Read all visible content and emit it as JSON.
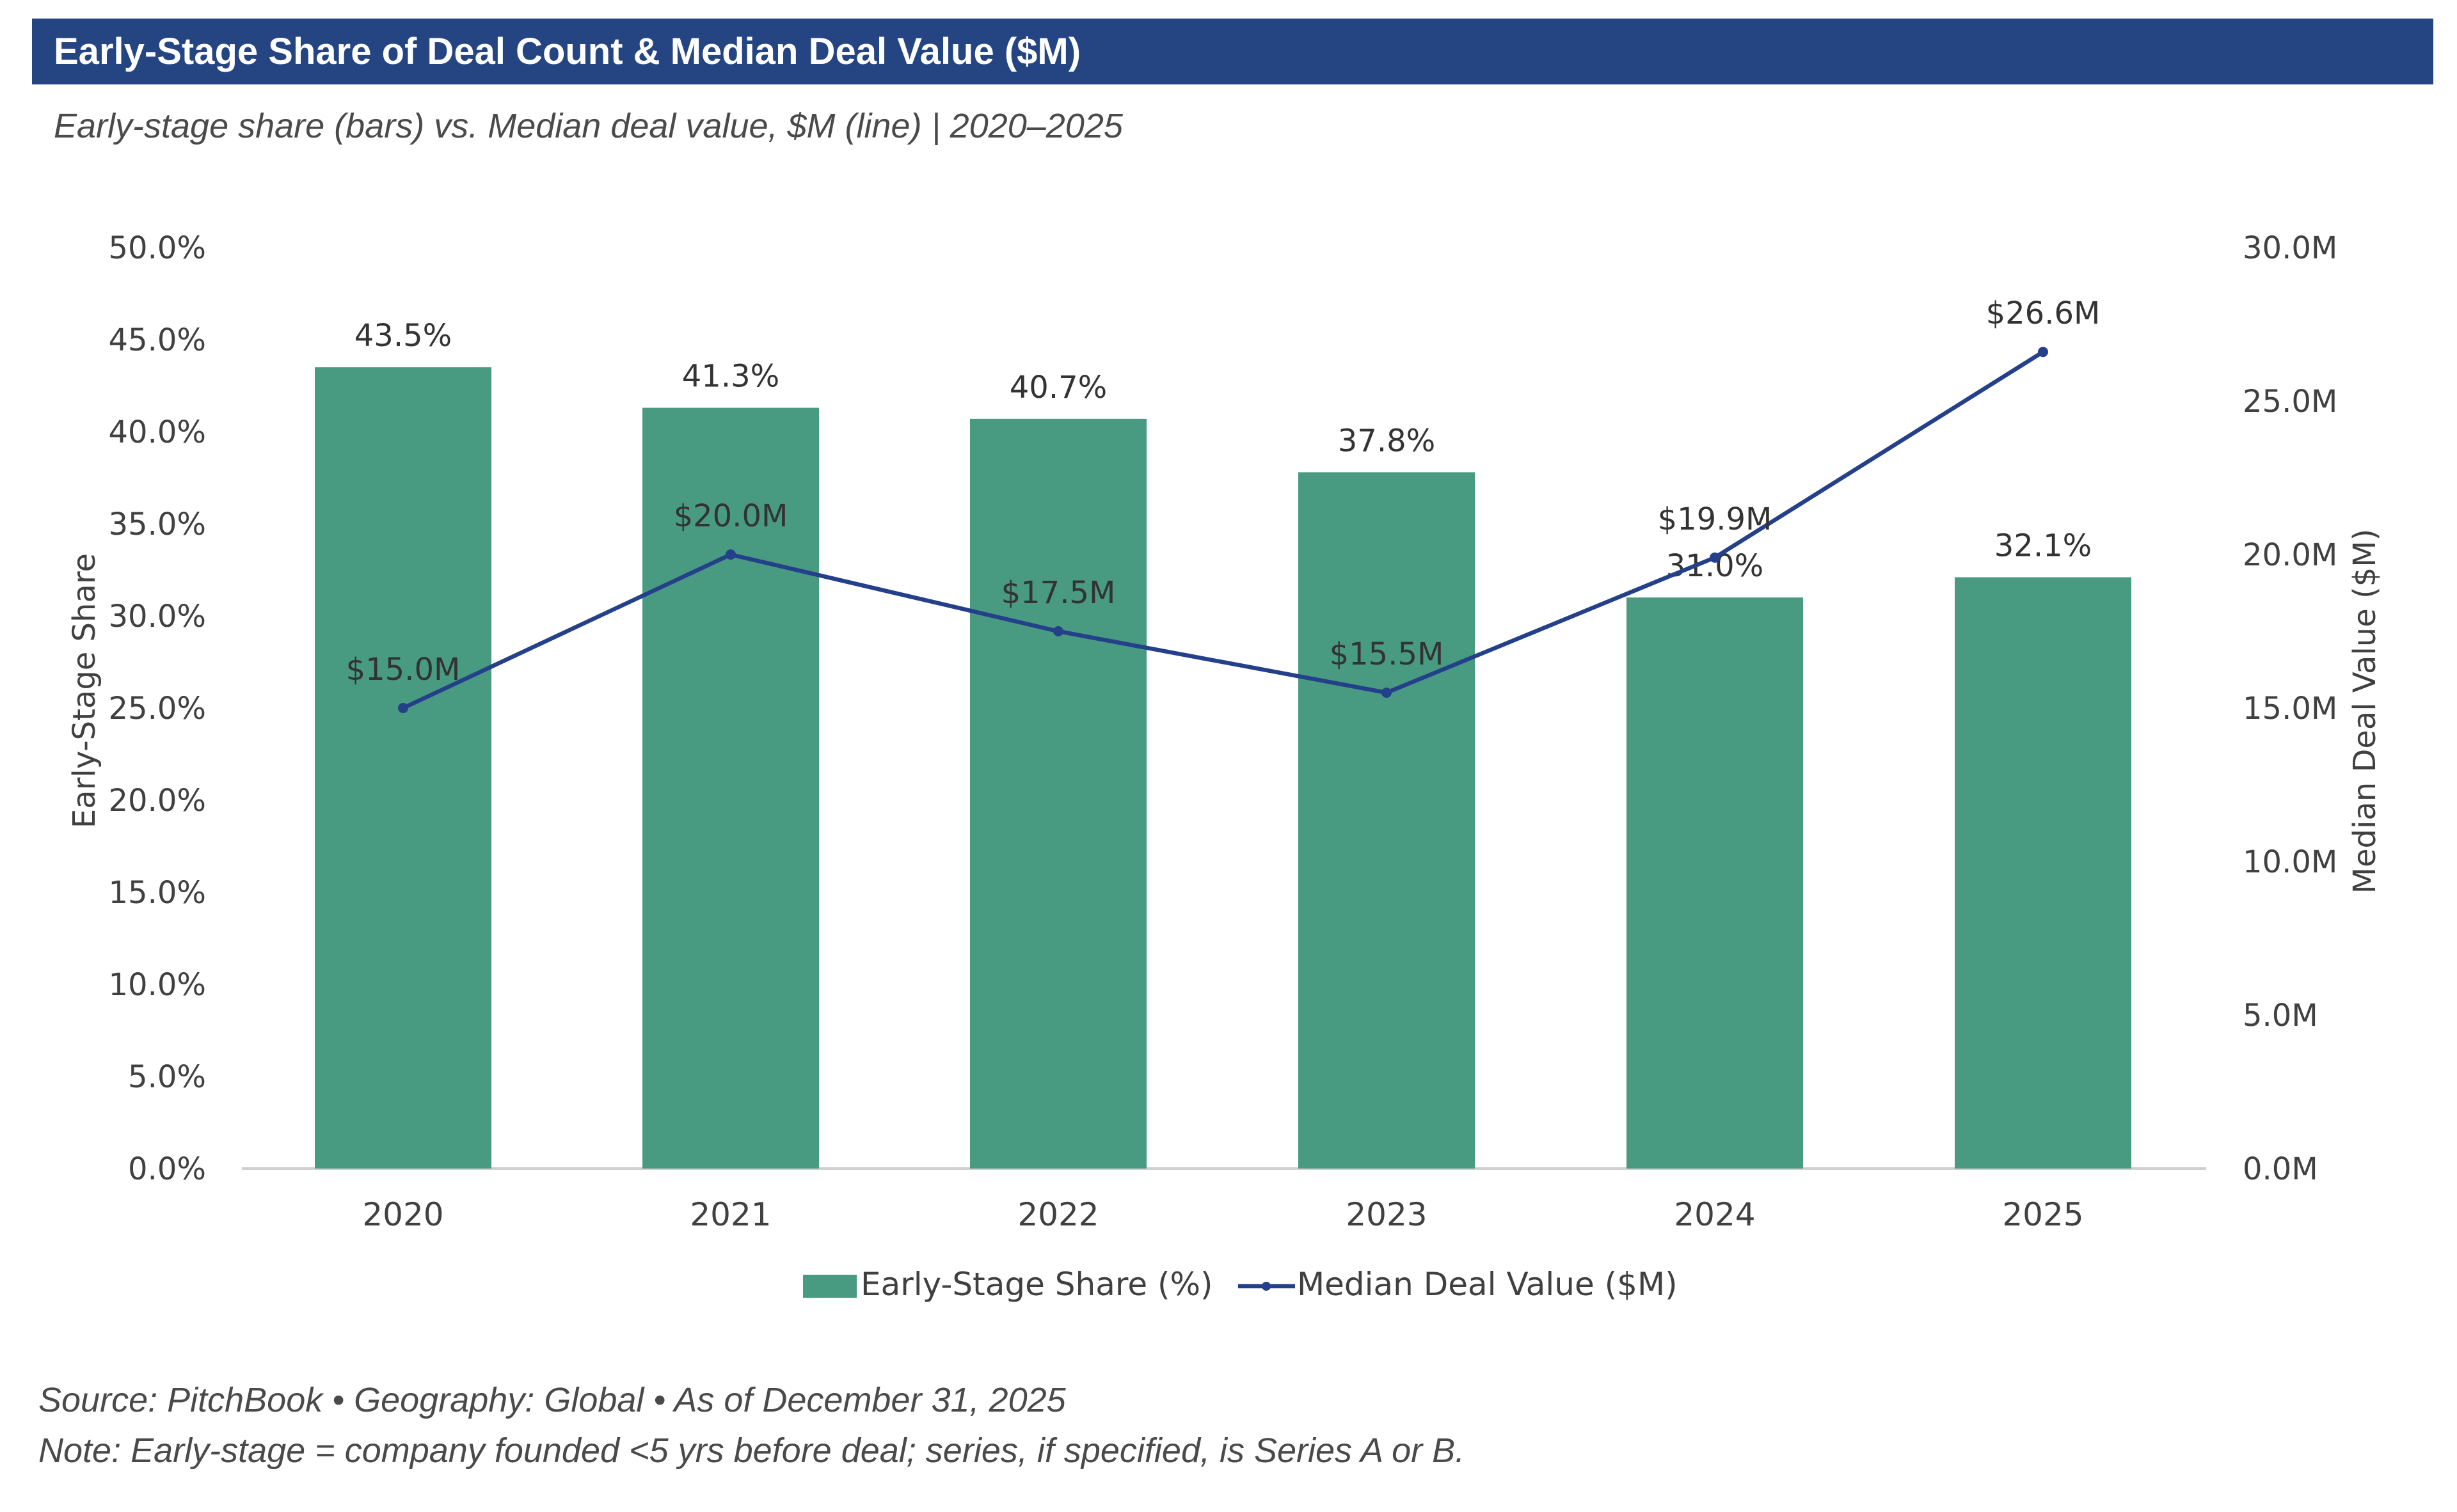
{
  "header": {
    "title": "Early-Stage Share of Deal Count & Median Deal Value ($M)",
    "subtitle": "Early-stage share (bars)  vs.  Median deal value, $M (line)  |  2020–2025"
  },
  "footer": {
    "source": "Source: PitchBook  •  Geography: Global  •  As of December 31, 2025",
    "note": "Note: Early-stage = company founded <5 yrs before deal; series, if specified, is Series A or B."
  },
  "colors": {
    "title_bar": "#254582",
    "bar": "#489b80",
    "line": "#25408a",
    "axis_text": "#404040",
    "label_text": "#333333"
  },
  "chart_data": {
    "type": "bar",
    "categories": [
      "2020",
      "2021",
      "2022",
      "2023",
      "2024",
      "2025"
    ],
    "series": [
      {
        "name": "Early-Stage Share (%)",
        "chart": "bar",
        "axis": "left",
        "values": [
          43.5,
          41.3,
          40.7,
          37.8,
          31.0,
          32.1
        ],
        "labels": [
          "43.5%",
          "41.3%",
          "40.7%",
          "37.8%",
          "31.0%",
          "32.1%"
        ]
      },
      {
        "name": "Median Deal Value ($M)",
        "chart": "line",
        "axis": "right",
        "values": [
          15.0,
          20.0,
          17.5,
          15.5,
          19.9,
          26.6
        ],
        "labels": [
          "$15.0M",
          "$20.0M",
          "$17.5M",
          "$15.5M",
          "$19.9M",
          "$26.6M"
        ]
      }
    ],
    "ylabel": "Early-Stage Share",
    "ylabel_right": "Median Deal Value ($M)",
    "ylim": [
      0,
      50
    ],
    "ylim_right": [
      0,
      30
    ],
    "yticks": [
      "0.0%",
      "5.0%",
      "10.0%",
      "15.0%",
      "20.0%",
      "25.0%",
      "30.0%",
      "35.0%",
      "40.0%",
      "45.0%",
      "50.0%"
    ],
    "yticks_right": [
      "0.0M",
      "5.0M",
      "10.0M",
      "15.0M",
      "20.0M",
      "25.0M",
      "30.0M"
    ],
    "legend": [
      "Early-Stage Share (%)",
      "Median Deal Value ($M)"
    ],
    "legend_position": "bottom",
    "grid": false
  }
}
